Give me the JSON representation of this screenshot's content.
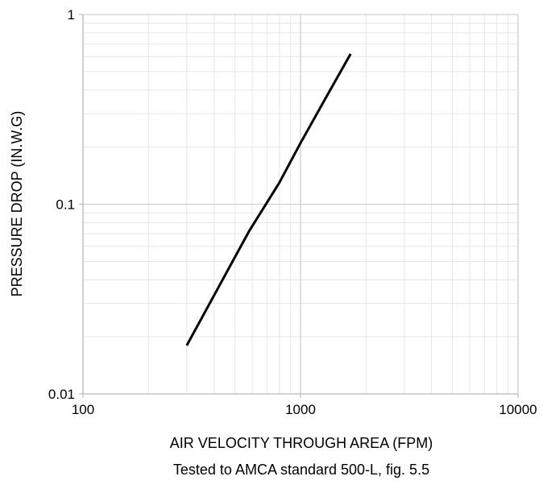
{
  "chart_data": {
    "type": "line",
    "title": "",
    "xlabel": "AIR VELOCITY THROUGH AREA (FPM)",
    "subtitle": "Tested to AMCA standard 500-L, fig. 5.5",
    "ylabel": "PRESSURE DROP (IN.W.G)",
    "x_scale": "log",
    "y_scale": "log",
    "xlim": [
      100,
      10000
    ],
    "ylim": [
      0.01,
      1
    ],
    "x_ticks": [
      "100",
      "1000",
      "10000"
    ],
    "y_ticks": [
      "0.01",
      "0.1",
      "1"
    ],
    "grid": true,
    "legend": "none",
    "series": [
      {
        "color": "#000000",
        "points": [
          {
            "x": 300,
            "y": 0.018
          },
          {
            "x": 580,
            "y": 0.072
          },
          {
            "x": 800,
            "y": 0.13
          },
          {
            "x": 1000,
            "y": 0.21
          },
          {
            "x": 1300,
            "y": 0.36
          },
          {
            "x": 1700,
            "y": 0.62
          }
        ]
      }
    ]
  }
}
